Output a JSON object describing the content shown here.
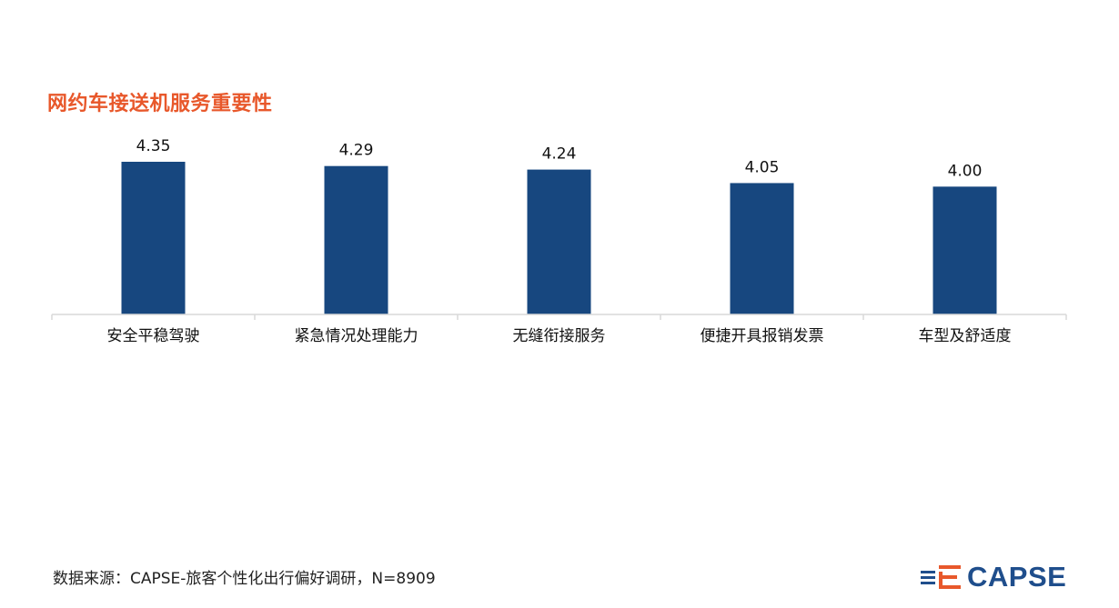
{
  "chart_data": {
    "type": "bar",
    "title": "网约车接送机服务重要性",
    "categories": [
      "安全平稳驾驶",
      "紧急情况处理能力",
      "无缝衔接服务",
      "便捷开具报销发票",
      "车型及舒适度"
    ],
    "values": [
      4.35,
      4.29,
      4.24,
      4.05,
      4.0
    ],
    "value_labels": [
      "4.35",
      "4.29",
      "4.24",
      "4.05",
      "4.00"
    ],
    "xlabel": "",
    "ylabel": "",
    "ylim": [
      2.2,
      4.35
    ],
    "grid": false,
    "legend": "none",
    "bar_color": "#17477f",
    "title_color": "#e8582b"
  },
  "footer": {
    "source": "数据来源：CAPSE-旅客个性化出行偏好调研，N=8909"
  },
  "logo": {
    "text": "CAPSE",
    "icon": "capse-logo-icon"
  }
}
